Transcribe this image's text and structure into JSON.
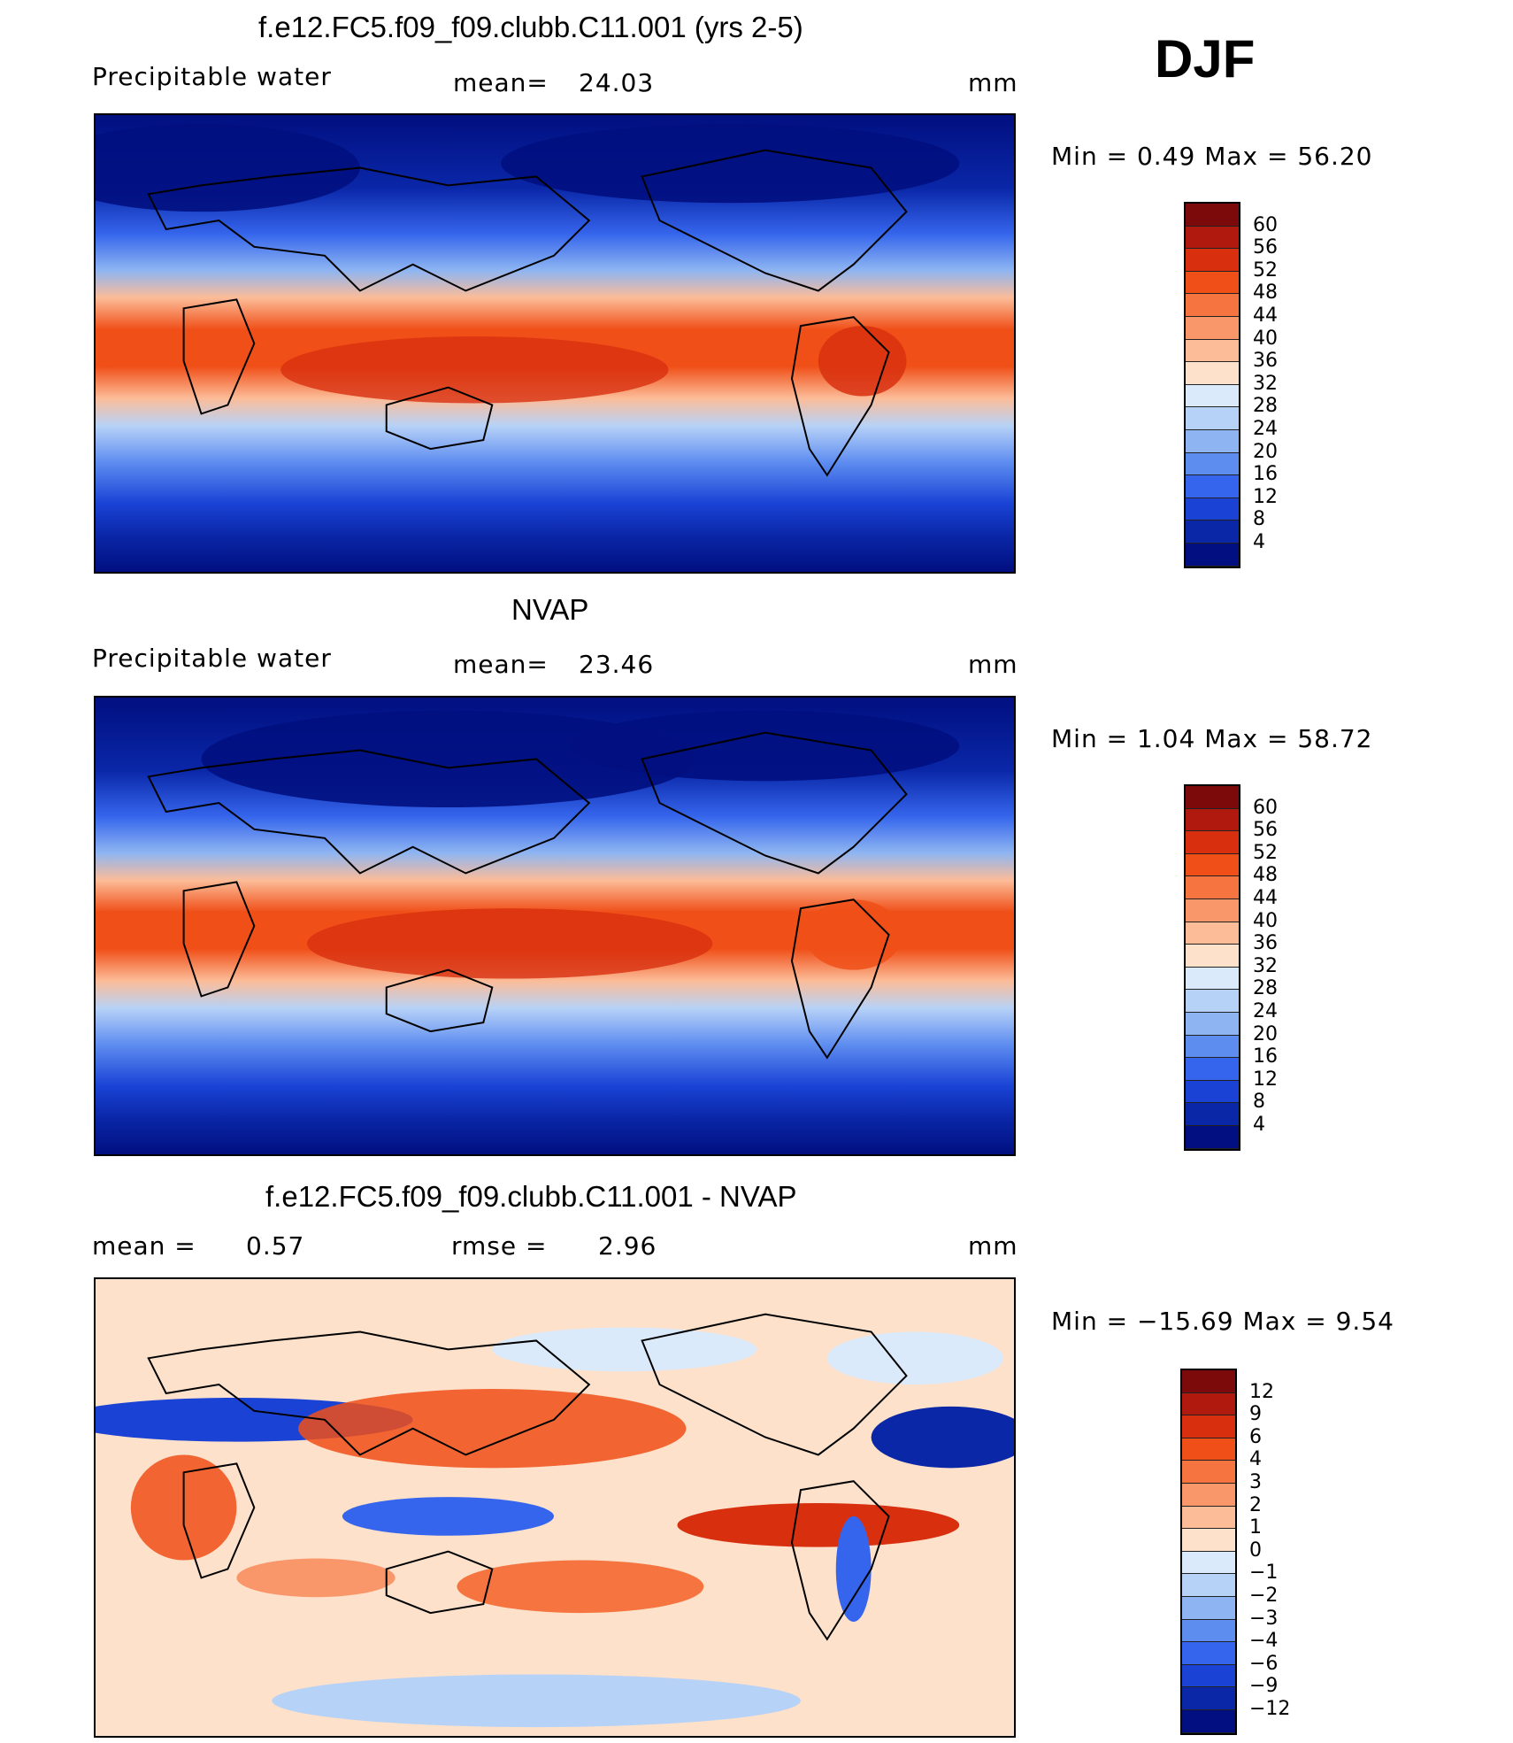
{
  "season": "DJF",
  "units_text": "mm",
  "panels": [
    {
      "title": "f.e12.FC5.f09_f09.clubb.C11.001 (yrs 2-5)",
      "left_label": "Precipitable  water",
      "stat1_label": "mean=",
      "stat1_value": "24.03",
      "stat2_label": "",
      "stat2_value": "",
      "minmax_text": "Min  =     0.49  Max  =    56.20",
      "colorbar": {
        "levels": [
          "60",
          "56",
          "52",
          "48",
          "44",
          "40",
          "36",
          "32",
          "28",
          "24",
          "20",
          "16",
          "12",
          "8",
          "4"
        ],
        "colors": [
          "#7d0a0a",
          "#b0190d",
          "#d8300f",
          "#f04f18",
          "#f6743f",
          "#f9966a",
          "#fcbc98",
          "#fde1cb",
          "#dbeafb",
          "#b7d2f7",
          "#8eb5f2",
          "#5e8df0",
          "#3565ec",
          "#1a43d6",
          "#0a27a8",
          "#010f80"
        ]
      }
    },
    {
      "title": "NVAP",
      "left_label": "Precipitable  water",
      "stat1_label": "mean=",
      "stat1_value": "23.46",
      "stat2_label": "",
      "stat2_value": "",
      "minmax_text": "Min  =     1.04  Max  =    58.72",
      "colorbar": {
        "levels": [
          "60",
          "56",
          "52",
          "48",
          "44",
          "40",
          "36",
          "32",
          "28",
          "24",
          "20",
          "16",
          "12",
          "8",
          "4"
        ],
        "colors": [
          "#7d0a0a",
          "#b0190d",
          "#d8300f",
          "#f04f18",
          "#f6743f",
          "#f9966a",
          "#fcbc98",
          "#fde1cb",
          "#dbeafb",
          "#b7d2f7",
          "#8eb5f2",
          "#5e8df0",
          "#3565ec",
          "#1a43d6",
          "#0a27a8",
          "#010f80"
        ]
      }
    },
    {
      "title": "f.e12.FC5.f09_f09.clubb.C11.001 - NVAP",
      "left_label": "mean  =",
      "stat1_label": "rmse  =",
      "stat1_value": "2.96",
      "stat0_value": "0.57",
      "minmax_text": "Min  = −15.69  Max  =      9.54",
      "colorbar": {
        "levels": [
          "12",
          "9",
          "6",
          "4",
          "3",
          "2",
          "1",
          "0",
          "−1",
          "−2",
          "−3",
          "−4",
          "−6",
          "−9",
          "−12"
        ],
        "colors": [
          "#7d0a0a",
          "#b0190d",
          "#d8300f",
          "#f04f18",
          "#f6743f",
          "#f9966a",
          "#fcbc98",
          "#fde1cb",
          "#dbeafb",
          "#b7d2f7",
          "#8eb5f2",
          "#5e8df0",
          "#3565ec",
          "#1a43d6",
          "#0a27a8",
          "#010f80"
        ]
      }
    }
  ]
}
